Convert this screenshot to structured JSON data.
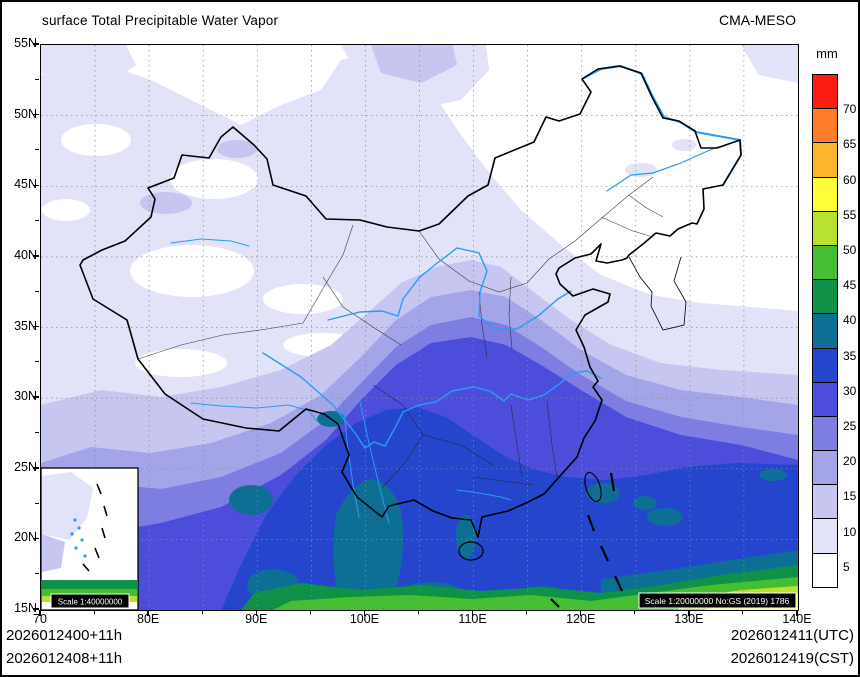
{
  "header": {
    "title": "surface Total Precipitable Water Vapor",
    "model": "CMA-MESO"
  },
  "axes": {
    "x_ticks": [
      "70",
      "80E",
      "90E",
      "100E",
      "110E",
      "120E",
      "130E",
      "140E"
    ],
    "y_ticks": [
      "55N",
      "50N",
      "45N",
      "40N",
      "35N",
      "30N",
      "25N",
      "20N",
      "15N"
    ]
  },
  "legend": {
    "unit": "mm",
    "labels": [
      "70",
      "65",
      "60",
      "55",
      "50",
      "45",
      "40",
      "35",
      "30",
      "25",
      "20",
      "15",
      "10",
      "5"
    ],
    "colors": [
      "#fb1c13",
      "#ff7d2a",
      "#ffb42d",
      "#ffff3a",
      "#b9e132",
      "#46be32",
      "#0f9148",
      "#0d6f93",
      "#2545cd",
      "#4d4ddc",
      "#7d7de2",
      "#a4a4e8",
      "#c6c6f0",
      "#e2e2f8",
      "#ffffff"
    ]
  },
  "footer": {
    "left_line1": "2026012400+11h",
    "left_line2": "2026012408+11h",
    "right_line1": "2026012411(UTC)",
    "right_line2": "2026012419(CST)"
  },
  "map": {
    "inset_scale": "Scale 1:40000000",
    "scale_note": "Scale 1:20000000 No:GS (2019) 1786"
  }
}
